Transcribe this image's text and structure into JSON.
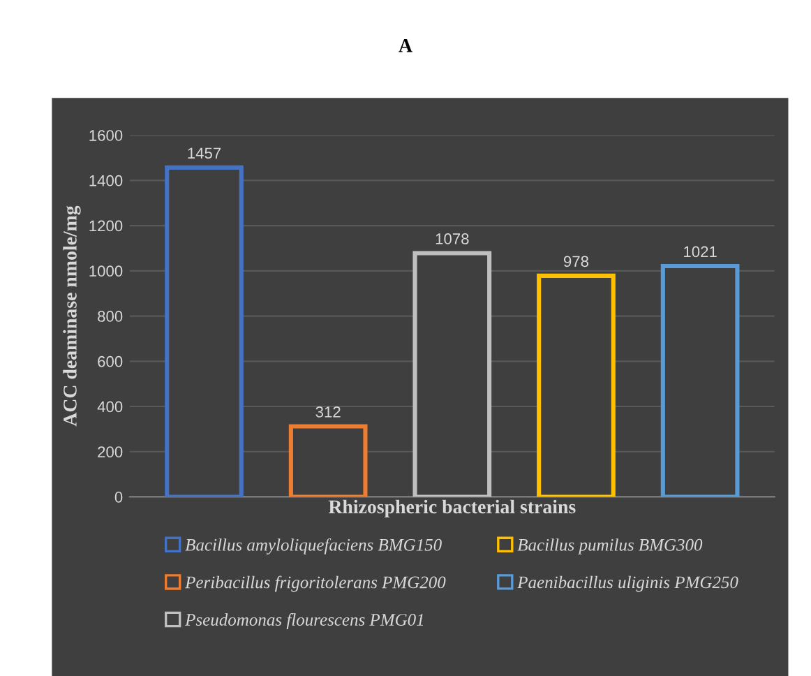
{
  "chart_data": {
    "type": "bar",
    "title": "A",
    "xlabel": "Rhizospheric bacterial strains",
    "ylabel": "ACC deaminase nmole/mg",
    "categories": [
      null,
      null,
      null,
      null,
      null
    ],
    "series": [
      {
        "name": "Bacillus amyloliquefaciens BMG150",
        "color": "#4472c4",
        "values": [
          1457,
          null,
          null,
          null,
          null
        ]
      },
      {
        "name": "Peribacillus frigoritolerans PMG200",
        "color": "#ed7d31",
        "values": [
          null,
          312,
          null,
          null,
          null
        ]
      },
      {
        "name": "Pseudomonas flourescens PMG01",
        "color": "#bfbfbf",
        "values": [
          null,
          null,
          1078,
          null,
          null
        ]
      },
      {
        "name": "Bacillus pumilus BMG300",
        "color": "#ffc000",
        "values": [
          null,
          null,
          null,
          978,
          null
        ]
      },
      {
        "name": "Paenibacillus uliginis PMG250",
        "color": "#5b9bd5",
        "values": [
          null,
          null,
          null,
          null,
          1021
        ]
      }
    ],
    "ylim": [
      0,
      1600
    ],
    "yticks": [
      0,
      200,
      400,
      600,
      800,
      1000,
      1200,
      1400,
      1600
    ],
    "grid": "y",
    "legend": "bottom",
    "data_labels": true
  }
}
